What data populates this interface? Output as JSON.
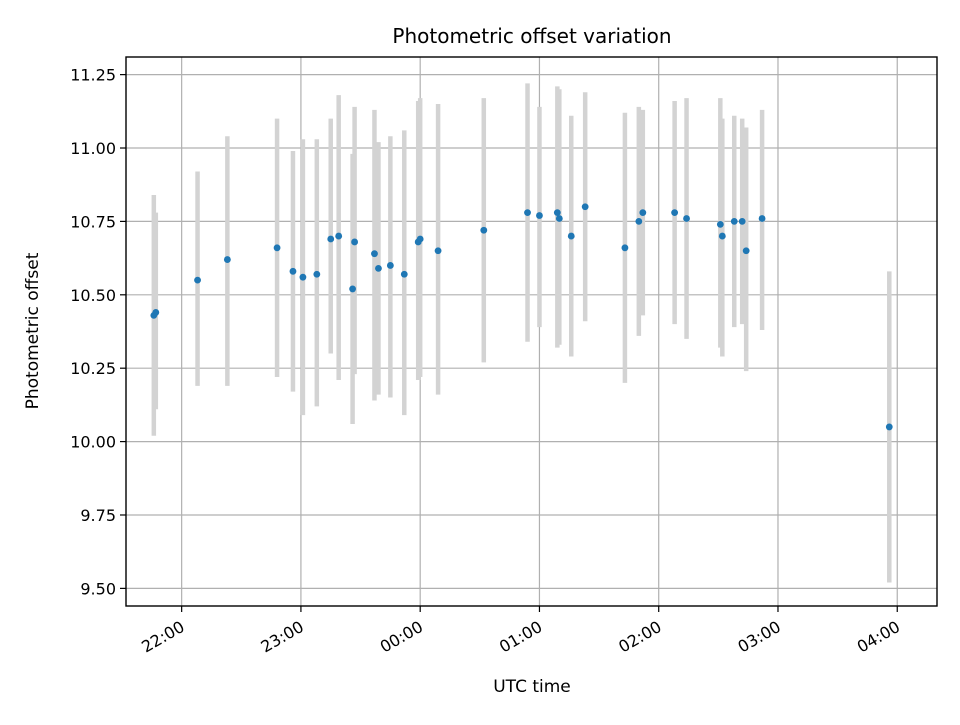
{
  "chart_data": {
    "type": "scatter",
    "title": "Photometric offset variation",
    "xlabel": "UTC time",
    "ylabel": "Photometric offset",
    "x_axis_type": "time",
    "xlim": [
      "21:32",
      "04:20"
    ],
    "ylim": [
      9.44,
      11.31
    ],
    "yticks": [
      9.5,
      9.75,
      10.0,
      10.25,
      10.5,
      10.75,
      11.0,
      11.25
    ],
    "ytick_labels": [
      "9.50",
      "9.75",
      "10.00",
      "10.25",
      "10.50",
      "10.75",
      "11.00",
      "11.25"
    ],
    "xticks": [
      "22:00",
      "23:00",
      "00:00",
      "01:00",
      "02:00",
      "03:00",
      "04:00"
    ],
    "xtick_labels": [
      "22:00",
      "23:00",
      "00:00",
      "01:00",
      "02:00",
      "03:00",
      "04:00"
    ],
    "xtick_label_rotation": 30,
    "grid": true,
    "marker_color": "#1f77b4",
    "errorbar_color": "#d3d3d3",
    "points": [
      {
        "x": "21:46",
        "y": 10.43,
        "ylow": 10.02,
        "yhigh": 10.84
      },
      {
        "x": "21:47",
        "y": 10.44,
        "ylow": 10.11,
        "yhigh": 10.78
      },
      {
        "x": "22:08",
        "y": 10.55,
        "ylow": 10.19,
        "yhigh": 10.92
      },
      {
        "x": "22:23",
        "y": 10.62,
        "ylow": 10.19,
        "yhigh": 11.04
      },
      {
        "x": "22:48",
        "y": 10.66,
        "ylow": 10.22,
        "yhigh": 11.1
      },
      {
        "x": "22:56",
        "y": 10.58,
        "ylow": 10.17,
        "yhigh": 10.99
      },
      {
        "x": "23:01",
        "y": 10.56,
        "ylow": 10.09,
        "yhigh": 11.03
      },
      {
        "x": "23:08",
        "y": 10.57,
        "ylow": 10.12,
        "yhigh": 11.03
      },
      {
        "x": "23:15",
        "y": 10.69,
        "ylow": 10.3,
        "yhigh": 11.1
      },
      {
        "x": "23:19",
        "y": 10.7,
        "ylow": 10.21,
        "yhigh": 11.18
      },
      {
        "x": "23:26",
        "y": 10.52,
        "ylow": 10.06,
        "yhigh": 10.98
      },
      {
        "x": "23:27",
        "y": 10.68,
        "ylow": 10.23,
        "yhigh": 11.14
      },
      {
        "x": "23:37",
        "y": 10.64,
        "ylow": 10.14,
        "yhigh": 11.13
      },
      {
        "x": "23:39",
        "y": 10.59,
        "ylow": 10.16,
        "yhigh": 11.02
      },
      {
        "x": "23:45",
        "y": 10.6,
        "ylow": 10.15,
        "yhigh": 11.04
      },
      {
        "x": "23:52",
        "y": 10.57,
        "ylow": 10.09,
        "yhigh": 11.06
      },
      {
        "x": "23:59",
        "y": 10.68,
        "ylow": 10.21,
        "yhigh": 11.16
      },
      {
        "x": "00:00",
        "y": 10.69,
        "ylow": 10.22,
        "yhigh": 11.17
      },
      {
        "x": "00:09",
        "y": 10.65,
        "ylow": 10.16,
        "yhigh": 11.15
      },
      {
        "x": "00:32",
        "y": 10.72,
        "ylow": 10.27,
        "yhigh": 11.17
      },
      {
        "x": "00:54",
        "y": 10.78,
        "ylow": 10.34,
        "yhigh": 11.22
      },
      {
        "x": "01:00",
        "y": 10.77,
        "ylow": 10.39,
        "yhigh": 11.14
      },
      {
        "x": "01:09",
        "y": 10.78,
        "ylow": 10.32,
        "yhigh": 11.21
      },
      {
        "x": "01:10",
        "y": 10.76,
        "ylow": 10.33,
        "yhigh": 11.2
      },
      {
        "x": "01:16",
        "y": 10.7,
        "ylow": 10.29,
        "yhigh": 11.11
      },
      {
        "x": "01:23",
        "y": 10.8,
        "ylow": 10.41,
        "yhigh": 11.19
      },
      {
        "x": "01:43",
        "y": 10.66,
        "ylow": 10.2,
        "yhigh": 11.12
      },
      {
        "x": "01:50",
        "y": 10.75,
        "ylow": 10.36,
        "yhigh": 11.14
      },
      {
        "x": "01:52",
        "y": 10.78,
        "ylow": 10.43,
        "yhigh": 11.13
      },
      {
        "x": "02:08",
        "y": 10.78,
        "ylow": 10.4,
        "yhigh": 11.16
      },
      {
        "x": "02:14",
        "y": 10.76,
        "ylow": 10.35,
        "yhigh": 11.17
      },
      {
        "x": "02:31",
        "y": 10.74,
        "ylow": 10.32,
        "yhigh": 11.17
      },
      {
        "x": "02:32",
        "y": 10.7,
        "ylow": 10.29,
        "yhigh": 11.1
      },
      {
        "x": "02:38",
        "y": 10.75,
        "ylow": 10.39,
        "yhigh": 11.11
      },
      {
        "x": "02:42",
        "y": 10.75,
        "ylow": 10.4,
        "yhigh": 11.1
      },
      {
        "x": "02:44",
        "y": 10.65,
        "ylow": 10.24,
        "yhigh": 11.07
      },
      {
        "x": "02:52",
        "y": 10.76,
        "ylow": 10.38,
        "yhigh": 11.13
      },
      {
        "x": "03:56",
        "y": 10.05,
        "ylow": 9.52,
        "yhigh": 10.58
      }
    ]
  }
}
